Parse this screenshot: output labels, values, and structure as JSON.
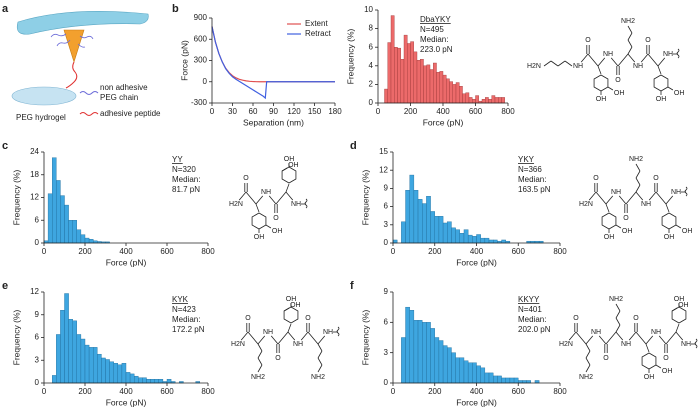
{
  "panel_labels": [
    "a",
    "b",
    "c",
    "d",
    "e",
    "f"
  ],
  "schematic": {
    "labels": [
      "non adhesive",
      "PEG chain",
      "adhesive peptide",
      "PEG hydrogel"
    ]
  },
  "chart_data": [
    {
      "type": "line",
      "xlabel": "Separation (nm)",
      "ylabel": "Force (pN)",
      "x": [
        0,
        5,
        10,
        15,
        20,
        25,
        30,
        35,
        40,
        45,
        50,
        55,
        60,
        65,
        70,
        75,
        78,
        80,
        90,
        100,
        120,
        140,
        160,
        180
      ],
      "series": [
        {
          "name": "Extent",
          "color": "#e05050",
          "values": [
            780,
            560,
            400,
            280,
            190,
            130,
            85,
            55,
            35,
            22,
            12,
            6,
            3,
            1,
            0,
            0,
            0,
            0,
            0,
            0,
            0,
            0,
            0,
            0
          ]
        },
        {
          "name": "Retract",
          "color": "#4060e0",
          "values": [
            780,
            560,
            400,
            280,
            185,
            120,
            70,
            35,
            5,
            -25,
            -55,
            -85,
            -115,
            -145,
            -175,
            -205,
            -230,
            0,
            0,
            0,
            0,
            0,
            0,
            0
          ]
        }
      ],
      "xlim": [
        0,
        180
      ],
      "ylim": [
        -300,
        900
      ],
      "xticks": [
        0,
        30,
        60,
        90,
        120,
        150,
        180
      ],
      "yticks": [
        -300,
        0,
        300,
        600,
        900
      ],
      "legend": "upper right"
    },
    {
      "type": "histogram",
      "xlabel": "Force (pN)",
      "ylabel": "Frequency (%)",
      "color": "#ec6a6a",
      "edge": "#a03a3a",
      "bins": [
        0,
        20,
        40,
        60,
        80,
        100,
        120,
        140,
        160,
        180,
        200,
        220,
        240,
        260,
        280,
        300,
        320,
        340,
        360,
        380,
        400,
        420,
        440,
        460,
        480,
        500,
        520,
        540,
        560,
        580,
        600,
        620,
        640,
        660,
        680,
        700,
        720,
        740,
        760,
        780,
        800
      ],
      "values": [
        0,
        0,
        1.5,
        6.5,
        9.4,
        6.0,
        5.9,
        4.7,
        7.3,
        6.4,
        6.6,
        5.5,
        4.6,
        4.7,
        4.0,
        4.1,
        3.6,
        4.3,
        3.3,
        3.4,
        3.0,
        2.6,
        2.3,
        2.0,
        2.2,
        1.8,
        1.0,
        1.1,
        0.6,
        0.4,
        0.8,
        0.2,
        0.4,
        0.6,
        0.4,
        0.8,
        0.6,
        0.6,
        0.6,
        0
      ],
      "xlim": [
        0,
        800
      ],
      "ylim": [
        0,
        10
      ],
      "xticks": [
        0,
        200,
        400,
        600,
        800
      ],
      "yticks": [
        0,
        2,
        4,
        6,
        8,
        10
      ],
      "annotation": [
        "DbaYKY",
        "N=495",
        "Median:",
        "223.0 pN"
      ]
    },
    {
      "type": "histogram",
      "xlabel": "Force (pN)",
      "ylabel": "Frequency (%)",
      "color": "#3ea6e0",
      "edge": "#1f6d9c",
      "bins": [
        0,
        20,
        40,
        60,
        80,
        100,
        120,
        140,
        160,
        180,
        200,
        220,
        240,
        260,
        280,
        300,
        320,
        340,
        360,
        380,
        400,
        420,
        440,
        460,
        480,
        500,
        520,
        540,
        560,
        580,
        600,
        620,
        640,
        660,
        680,
        700,
        720,
        740,
        760,
        780,
        800
      ],
      "values": [
        0.6,
        13,
        22.5,
        16.5,
        12.5,
        10,
        6,
        6,
        3.5,
        2.2,
        1.3,
        1.0,
        0.6,
        0.4,
        0.3,
        0.3,
        0,
        0,
        0,
        0,
        0,
        0,
        0,
        0,
        0,
        0,
        0,
        0,
        0,
        0,
        0,
        0,
        0,
        0,
        0,
        0,
        0,
        0,
        0,
        0
      ],
      "xlim": [
        0,
        800
      ],
      "ylim": [
        0,
        24
      ],
      "xticks": [
        0,
        200,
        400,
        600,
        800
      ],
      "yticks": [
        0,
        6,
        12,
        18,
        24
      ],
      "annotation": [
        "YY",
        "N=320",
        "Median:",
        "81.7 pN"
      ]
    },
    {
      "type": "histogram",
      "xlabel": "Force (pN)",
      "ylabel": "Frequency (%)",
      "color": "#3ea6e0",
      "edge": "#1f6d9c",
      "bins": [
        0,
        20,
        40,
        60,
        80,
        100,
        120,
        140,
        160,
        180,
        200,
        220,
        240,
        260,
        280,
        300,
        320,
        340,
        360,
        380,
        400,
        420,
        440,
        460,
        480,
        500,
        520,
        540,
        560,
        580,
        600,
        620,
        640,
        660,
        680,
        700,
        720,
        740,
        760,
        780,
        800
      ],
      "values": [
        0.5,
        0,
        3.5,
        8.7,
        11.2,
        8.7,
        7.2,
        6.5,
        7.7,
        5.2,
        4.4,
        4.4,
        3.3,
        3.5,
        2.5,
        2.2,
        1.6,
        2.2,
        1.3,
        1.1,
        1.4,
        0.8,
        0.8,
        0.5,
        0.5,
        0.3,
        0.5,
        0.3,
        0,
        0,
        0,
        0,
        0.3,
        0.3,
        0.3,
        0.3,
        0,
        0,
        0,
        0
      ],
      "xlim": [
        0,
        800
      ],
      "ylim": [
        0,
        15
      ],
      "xticks": [
        0,
        200,
        400,
        600,
        800
      ],
      "yticks": [
        0,
        3,
        6,
        9,
        12,
        15
      ],
      "annotation": [
        "YKY",
        "N=366",
        "Median:",
        "163.5 pN"
      ]
    },
    {
      "type": "histogram",
      "xlabel": "Force (pN)",
      "ylabel": "Frequency (%)",
      "color": "#3ea6e0",
      "edge": "#1f6d9c",
      "bins": [
        0,
        20,
        40,
        60,
        80,
        100,
        120,
        140,
        160,
        180,
        200,
        220,
        240,
        260,
        280,
        300,
        320,
        340,
        360,
        380,
        400,
        420,
        440,
        460,
        480,
        500,
        520,
        540,
        560,
        580,
        600,
        620,
        640,
        660,
        680,
        700,
        720,
        740,
        760,
        780,
        800
      ],
      "values": [
        0,
        0,
        1,
        6.4,
        9.6,
        11.8,
        8.4,
        8.2,
        6.4,
        5.8,
        5.0,
        4.7,
        4.7,
        3.8,
        3.3,
        3.1,
        2.8,
        2.6,
        2.4,
        2.6,
        1.4,
        1.2,
        0.9,
        0.7,
        0.7,
        0.5,
        0.5,
        0.5,
        0.5,
        0.2,
        0.5,
        0.2,
        0,
        0.2,
        0,
        0,
        0,
        0.2,
        0,
        0
      ],
      "xlim": [
        0,
        800
      ],
      "ylim": [
        0,
        12
      ],
      "xticks": [
        0,
        200,
        400,
        600,
        800
      ],
      "yticks": [
        0,
        3,
        6,
        9,
        12
      ],
      "annotation": [
        "KYK",
        "N=423",
        "Median:",
        "172.2 pN"
      ]
    },
    {
      "type": "histogram",
      "xlabel": "Force (pN)",
      "ylabel": "Frequency (%)",
      "color": "#3ea6e0",
      "edge": "#1f6d9c",
      "bins": [
        0,
        20,
        40,
        60,
        80,
        100,
        120,
        140,
        160,
        180,
        200,
        220,
        240,
        260,
        280,
        300,
        320,
        340,
        360,
        380,
        400,
        420,
        440,
        460,
        480,
        500,
        520,
        540,
        560,
        580,
        600,
        620,
        640,
        660,
        680,
        700,
        720,
        740,
        760,
        780,
        800
      ],
      "values": [
        0,
        0,
        4.5,
        7.5,
        7.2,
        6.2,
        6.2,
        6.0,
        6.0,
        5.4,
        4.5,
        4.2,
        3.7,
        3.5,
        3.0,
        2.5,
        2.5,
        2.2,
        2.0,
        2.0,
        1.7,
        1.5,
        1.0,
        1.0,
        0.7,
        0.7,
        0.5,
        0.5,
        0.5,
        0.5,
        0.25,
        0.25,
        0.25,
        0,
        0.25,
        0,
        0,
        0,
        0,
        0
      ],
      "xlim": [
        0,
        800
      ],
      "ylim": [
        0,
        9
      ],
      "xticks": [
        0,
        200,
        400,
        600,
        800
      ],
      "yticks": [
        0,
        3,
        6,
        9
      ],
      "annotation": [
        "KKYY",
        "N=401",
        "Median:",
        "202.0 pN"
      ]
    }
  ],
  "structures": [
    {
      "labels": [
        "H2N",
        "NH",
        "O",
        "OH",
        "OH",
        "NH",
        "O",
        "NH2",
        "NH",
        "O",
        "OH",
        "OH",
        "NH"
      ]
    },
    {
      "labels": [
        "H2N",
        "O",
        "OH",
        "OH",
        "NH",
        "O",
        "OH",
        "OH",
        "NH"
      ]
    },
    {
      "labels": [
        "H2N",
        "O",
        "OH",
        "OH",
        "NH",
        "O",
        "NH2",
        "NH",
        "O",
        "OH",
        "OH",
        "NH"
      ]
    },
    {
      "labels": [
        "H2N",
        "O",
        "NH2",
        "NH",
        "O",
        "OH",
        "OH",
        "NH",
        "O",
        "NH2",
        "NH"
      ]
    },
    {
      "labels": [
        "H2N",
        "O",
        "NH2",
        "NH",
        "O",
        "NH2",
        "NH",
        "O",
        "OH",
        "OH",
        "NH",
        "O",
        "OH",
        "OH",
        "NH"
      ]
    }
  ]
}
